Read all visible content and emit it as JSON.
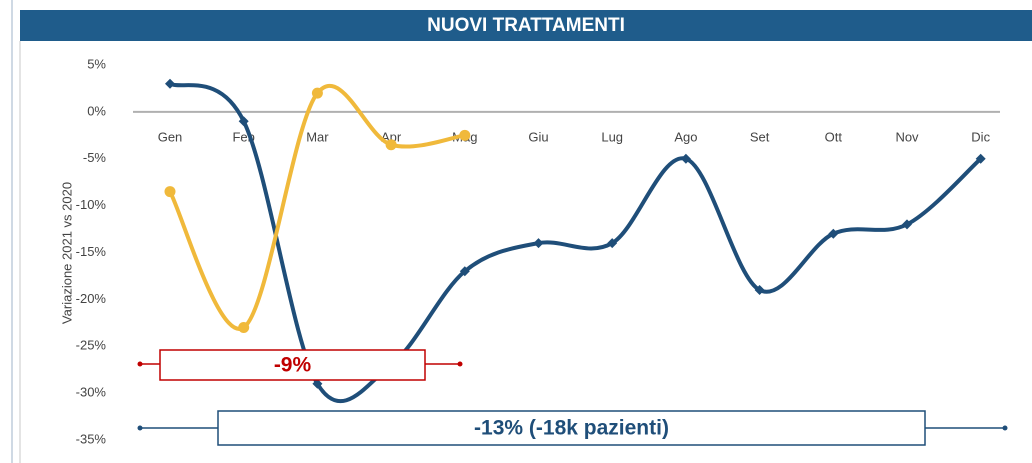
{
  "chart_data": {
    "type": "line",
    "title": "NUOVI TRATTAMENTI",
    "y_label": "Variazione 2021 vs 2020",
    "categories": [
      "Gen",
      "Feb",
      "Mar",
      "Apr",
      "Mag",
      "Giu",
      "Lug",
      "Ago",
      "Set",
      "Ott",
      "Nov",
      "Dic"
    ],
    "series": [
      {
        "color": "#1f4e79",
        "marker": "diamond",
        "values": [
          3,
          -1,
          -29,
          -27,
          -17,
          -14,
          -14,
          -5,
          -19,
          -13,
          -12,
          -5
        ]
      },
      {
        "color": "#f0b93b",
        "marker": "circle",
        "values": [
          -8.5,
          -23,
          2,
          -3.5,
          -2.5,
          null,
          null,
          null,
          null,
          null,
          null,
          null
        ]
      }
    ],
    "ylim": [
      -35,
      5
    ],
    "yticks": [
      {
        "value": 5,
        "label": "5%"
      },
      {
        "value": 0,
        "label": "0%"
      },
      {
        "value": -5,
        "label": "-5%"
      },
      {
        "value": -10,
        "label": "-10%"
      },
      {
        "value": -15,
        "label": "-15%"
      },
      {
        "value": -20,
        "label": "-20%"
      },
      {
        "value": -25,
        "label": "-25%"
      },
      {
        "value": -30,
        "label": "-30%"
      },
      {
        "value": -35,
        "label": "-35%"
      }
    ],
    "zero_line": true,
    "annotations": [
      {
        "text": "-9%",
        "color": "#c00000"
      },
      {
        "text": "-13% (-18k pazienti)",
        "color": "#1f4e79"
      }
    ]
  }
}
